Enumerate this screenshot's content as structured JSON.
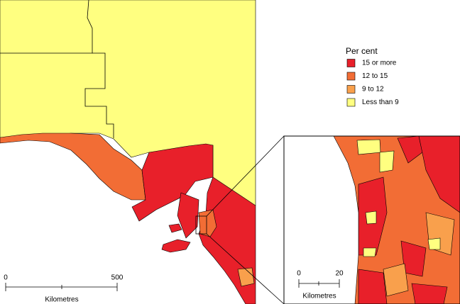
{
  "legend": {
    "title": "Per cent",
    "items": [
      {
        "label": "15 or more",
        "color": "#e8202a"
      },
      {
        "label": "12 to 15",
        "color": "#f26d35"
      },
      {
        "label": "9 to 12",
        "color": "#f9a04c"
      },
      {
        "label": "Less than 9",
        "color": "#ffff80"
      }
    ]
  },
  "main_scale": {
    "ticks": [
      0,
      500
    ],
    "unit": "Kilometres"
  },
  "inset_scale": {
    "ticks": [
      0,
      20
    ],
    "unit": "Kilometres"
  }
}
